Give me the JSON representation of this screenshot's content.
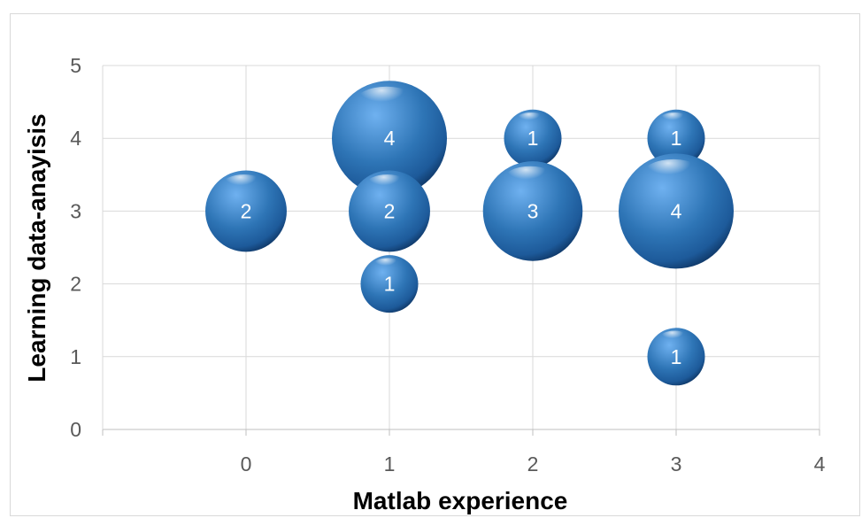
{
  "chart_data": {
    "type": "scatter",
    "subtype": "bubble",
    "title": "",
    "xlabel": "Matlab experience",
    "ylabel": "Learning data-anayisis",
    "xlim": [
      -1,
      4
    ],
    "ylim": [
      0,
      5
    ],
    "x_ticks": [
      0,
      1,
      2,
      3,
      4
    ],
    "y_ticks": [
      0,
      1,
      2,
      3,
      4,
      5
    ],
    "grid": true,
    "legend": "none",
    "bubble_color": "#2e75b6",
    "points": [
      {
        "x": 0,
        "y": 3,
        "size": 2,
        "label": "2"
      },
      {
        "x": 1,
        "y": 4,
        "size": 4,
        "label": "4"
      },
      {
        "x": 1,
        "y": 3,
        "size": 2,
        "label": "2"
      },
      {
        "x": 1,
        "y": 2,
        "size": 1,
        "label": "1"
      },
      {
        "x": 2,
        "y": 4,
        "size": 1,
        "label": "1"
      },
      {
        "x": 2,
        "y": 3,
        "size": 3,
        "label": "3"
      },
      {
        "x": 3,
        "y": 4,
        "size": 1,
        "label": "1"
      },
      {
        "x": 3,
        "y": 3,
        "size": 4,
        "label": "4"
      },
      {
        "x": 3,
        "y": 1,
        "size": 1,
        "label": "1"
      }
    ]
  }
}
